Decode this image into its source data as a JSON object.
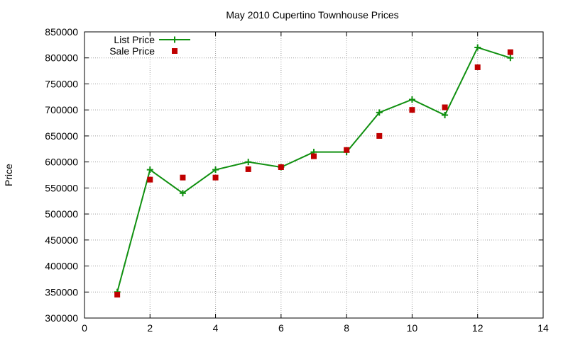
{
  "chart_data": {
    "type": "line",
    "title": "May 2010 Cupertino Townhouse Prices",
    "xlabel": "",
    "ylabel": "Price",
    "xlim": [
      0,
      14
    ],
    "ylim": [
      300000,
      850000
    ],
    "xticks": [
      0,
      2,
      4,
      6,
      8,
      10,
      12,
      14
    ],
    "yticks": [
      300000,
      350000,
      400000,
      450000,
      500000,
      550000,
      600000,
      650000,
      700000,
      750000,
      800000,
      850000
    ],
    "grid": true,
    "legend_position": "top-left",
    "series": [
      {
        "name": "List Price",
        "style": "line+cross",
        "color": "#109010",
        "x": [
          1,
          2,
          3,
          4,
          5,
          6,
          7,
          8,
          9,
          10,
          11,
          12,
          13
        ],
        "y": [
          350000,
          585000,
          540000,
          585000,
          600000,
          590000,
          619000,
          619000,
          695000,
          720000,
          690000,
          820000,
          800000
        ]
      },
      {
        "name": "Sale Price",
        "style": "square-points",
        "color": "#c00000",
        "x": [
          1,
          2,
          3,
          4,
          5,
          6,
          7,
          8,
          9,
          10,
          11,
          12,
          13
        ],
        "y": [
          345000,
          566000,
          570000,
          570000,
          586000,
          590000,
          611000,
          623000,
          650000,
          700000,
          705000,
          782000,
          811000
        ]
      }
    ]
  }
}
